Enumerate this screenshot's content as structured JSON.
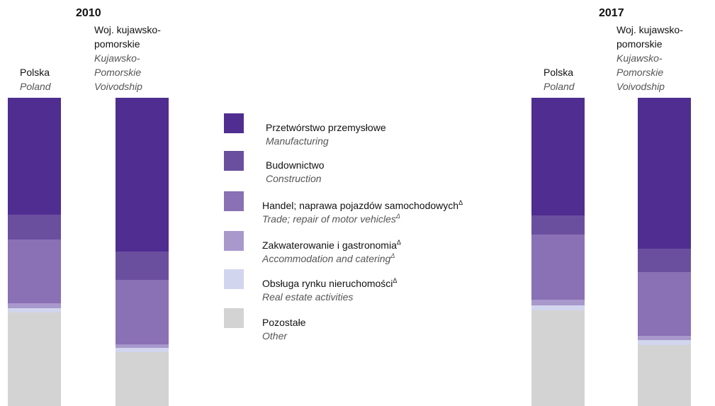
{
  "chart_data": {
    "type": "bar",
    "stacked": true,
    "years": [
      "2010",
      "2017"
    ],
    "categories": [
      "Polska",
      "Woj. kujawsko-pomorskie",
      "Polska",
      "Woj. kujawsko-pomorskie"
    ],
    "categories_en": [
      "Poland",
      "Kujawsko-Pomorskie Voivodship",
      "Poland",
      "Kujawsko-Pomorskie Voivodship"
    ],
    "category_year": [
      0,
      0,
      1,
      1
    ],
    "ylim": [
      0,
      100
    ],
    "series": [
      {
        "name": "Przetwórstwo przemysłowe",
        "name_en": "Manufacturing",
        "color": "#4f2d91",
        "values": [
          37.9,
          49.9,
          38.2,
          49.0
        ]
      },
      {
        "name": "Budownictwo",
        "name_en": "Construction",
        "color": "#6b4f9f",
        "values": [
          8.0,
          9.2,
          6.2,
          7.6
        ]
      },
      {
        "name": "Handel; naprawa pojazdów samochodowych",
        "name_en": "Trade; repair of motor vehicles",
        "note": "Δ",
        "note_en": "Δ",
        "color": "#8a70b5",
        "values": [
          20.7,
          20.9,
          21.1,
          20.7
        ]
      },
      {
        "name": "Zakwaterowanie i gastronomia",
        "name_en": "Accommodation and catering",
        "note": "Δ",
        "note_en": "Δ",
        "color": "#a898cc",
        "values": [
          1.6,
          1.1,
          1.8,
          1.4
        ]
      },
      {
        "name": "Obsługa rynku nieruchomości",
        "name_en": "Real estate activities",
        "note": "Δ",
        "color": "#d2d5ee",
        "values": [
          1.4,
          1.4,
          1.6,
          1.6
        ]
      },
      {
        "name": "Pozostałe",
        "name_en": "Other",
        "color": "#d3d3d3",
        "values": [
          30.4,
          17.5,
          31.1,
          19.7
        ]
      }
    ]
  }
}
